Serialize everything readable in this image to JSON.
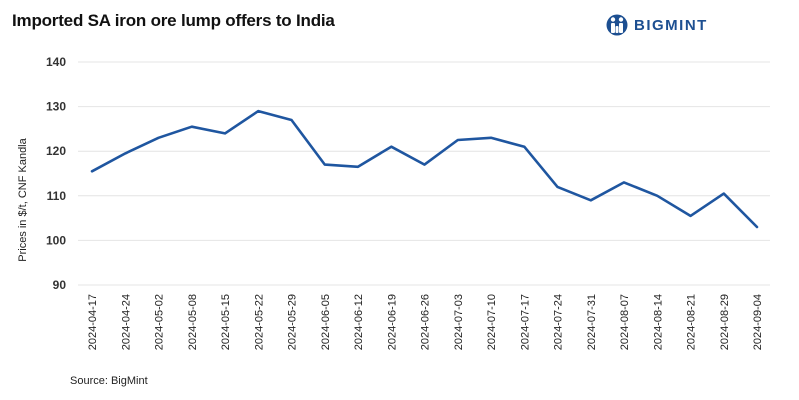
{
  "header": {
    "title": "Imported SA iron ore lump offers to India",
    "brand": "BIGMINT"
  },
  "footer": {
    "source": "Source: BigMint"
  },
  "colors": {
    "line": "#1f56a0",
    "brand": "#1d4f91",
    "grid": "#e4e4e4"
  },
  "chart_data": {
    "type": "line",
    "title": "Imported SA iron ore lump offers to India",
    "xlabel": "",
    "ylabel": "Prices in $/t, CNF Kandla",
    "ylim": [
      90,
      140
    ],
    "yticks": [
      90,
      100,
      110,
      120,
      130,
      140
    ],
    "grid": true,
    "categories": [
      "2024-04-17",
      "2024-04-24",
      "2024-05-02",
      "2024-05-08",
      "2024-05-15",
      "2024-05-22",
      "2024-05-29",
      "2024-06-05",
      "2024-06-12",
      "2024-06-19",
      "2024-06-26",
      "2024-07-03",
      "2024-07-10",
      "2024-07-17",
      "2024-07-24",
      "2024-07-31",
      "2024-08-07",
      "2024-08-14",
      "2024-08-21",
      "2024-08-29",
      "2024-09-04"
    ],
    "series": [
      {
        "name": "Imported SA iron ore lump offers",
        "values": [
          115.5,
          119.5,
          123,
          125.5,
          124,
          129,
          127,
          117,
          116.5,
          121,
          117,
          122.5,
          123,
          121,
          112,
          109,
          113,
          110,
          105.5,
          110.5,
          103
        ]
      }
    ]
  }
}
